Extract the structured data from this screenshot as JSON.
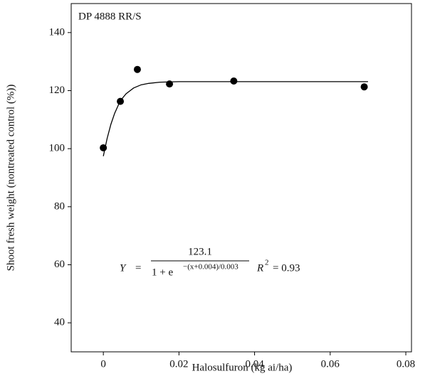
{
  "chart_data": {
    "type": "scatter",
    "title": "DP 4888 RR/S",
    "x_label": "Halosulfuron (kg ai/ha)",
    "y_label": "Shoot fresh weight (nontreated control (%))",
    "x": [
      0,
      0.0045,
      0.009,
      0.0175,
      0.0345,
      0.069
    ],
    "values": [
      100.3,
      116.3,
      127.3,
      122.3,
      123.3,
      121.3
    ],
    "color": "#000000",
    "fit": {
      "x": [
        0,
        0.001,
        0.002,
        0.003,
        0.004,
        0.005,
        0.006,
        0.008,
        0.01,
        0.012,
        0.015,
        0.02,
        0.03,
        0.05,
        0.07
      ],
      "values": [
        97.4,
        103.5,
        108.4,
        112.2,
        115.1,
        117.3,
        118.9,
        120.9,
        122.0,
        122.5,
        122.9,
        123.1,
        123.1,
        123.1,
        123.1
      ]
    },
    "equation": {
      "lhs": "Y",
      "equals": "=",
      "numerator": "123.1",
      "denominator": "1 + e",
      "exponent": "−(x+0.004)/0.003",
      "r_label": "R",
      "r_sup": "2",
      "r_value": "= 0.93"
    },
    "xlim": [
      -0.0085,
      0.0815
    ],
    "xticks": [
      0,
      0.02,
      0.04,
      0.06,
      0.08
    ],
    "ylim": [
      30,
      150
    ],
    "yticks": [
      40,
      60,
      80,
      100,
      120,
      140
    ]
  }
}
